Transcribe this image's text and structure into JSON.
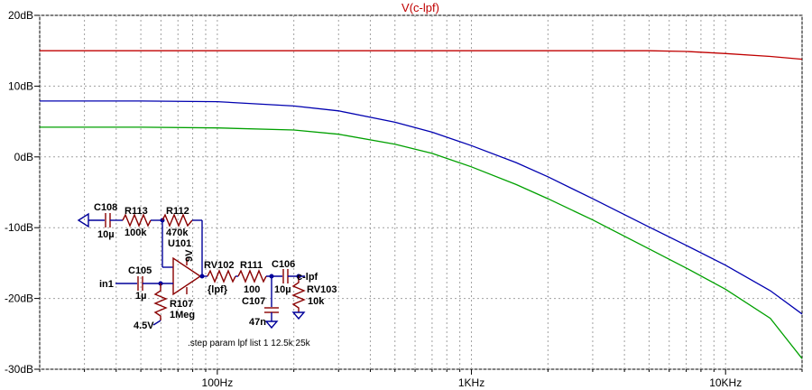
{
  "chart_data": {
    "type": "line",
    "title": "V(c-lpf)",
    "title_color": "#c00000",
    "xscale": "log",
    "xlim": [
      20,
      20000
    ],
    "ylim": [
      -30,
      20
    ],
    "grid": true,
    "x_ticks": [
      100,
      1000,
      10000
    ],
    "x_tick_labels": [
      "100Hz",
      "1KHz",
      "10KHz"
    ],
    "y_ticks": [
      20,
      10,
      0,
      -10,
      -20,
      -30
    ],
    "y_tick_labels": [
      "20dB",
      "10dB",
      "0dB",
      "-10dB",
      "-20dB",
      "-30dB"
    ],
    "x": [
      20,
      50,
      100,
      200,
      300,
      500,
      700,
      1000,
      1500,
      2000,
      3000,
      5000,
      7000,
      10000,
      15000,
      20000
    ],
    "series": [
      {
        "color": "#c00000",
        "values": [
          15,
          15,
          15,
          15,
          15,
          15,
          15,
          15,
          15,
          15,
          15,
          15,
          14.9,
          14.6,
          14.2,
          13.8
        ]
      },
      {
        "color": "#0000b0",
        "values": [
          7.9,
          7.9,
          7.8,
          7.2,
          6.5,
          4.9,
          3.5,
          1.6,
          -0.8,
          -2.8,
          -5.9,
          -9.9,
          -12.5,
          -15.3,
          -18.9,
          -22.2
        ]
      },
      {
        "color": "#00a000",
        "values": [
          4.2,
          4.2,
          4.1,
          3.8,
          3.2,
          1.8,
          0.5,
          -1.4,
          -3.9,
          -5.9,
          -8.9,
          -13.0,
          -15.7,
          -18.7,
          -22.8,
          -28.5
        ]
      }
    ]
  },
  "schematic": {
    "labels": {
      "c108": "C108",
      "c108_val": "10µ",
      "r113": "R113",
      "r113_val": "100k",
      "r112": "R112",
      "r112_val": "470k",
      "u101": "U101",
      "supply": "9V",
      "c105": "C105",
      "c105_val": "1µ",
      "in": "in1",
      "r107": "R107",
      "r107_val": "1Meg",
      "bias": "4.5V",
      "rv102": "RV102",
      "rv102_val": "{lpf}",
      "r111": "R111",
      "r111_val": "100",
      "c106": "C106",
      "c106_val": "10µ",
      "out": "c-lpf",
      "rv103": "RV103",
      "rv103_val": "10k",
      "c107": "C107",
      "c107_val": "47n"
    },
    "directive": ".step param lpf list 1 12.5k 25k"
  }
}
